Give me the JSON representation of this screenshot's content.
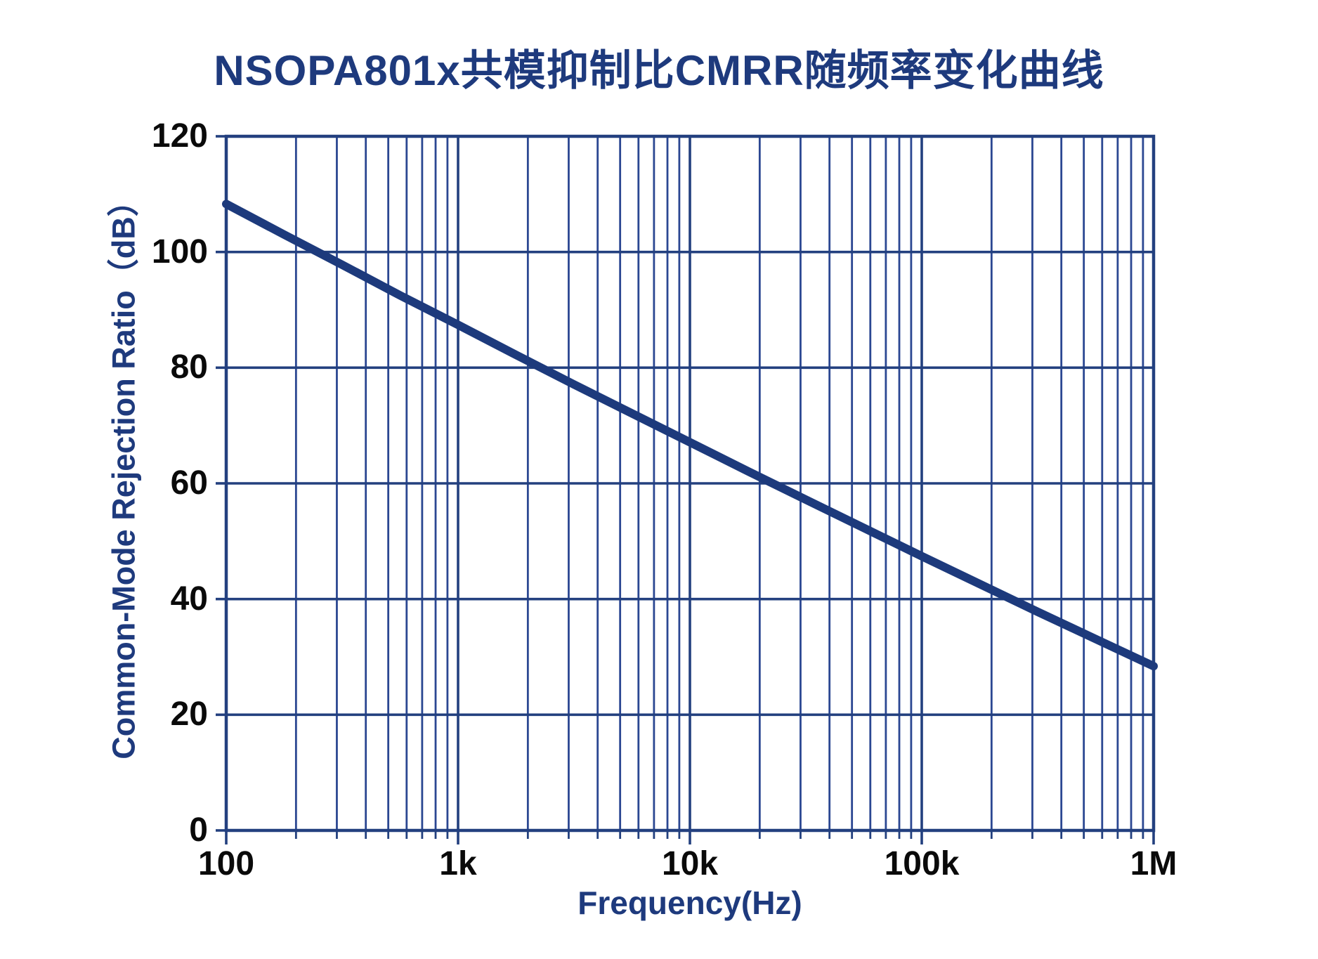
{
  "colors": {
    "curve": "#1d3a7c",
    "grid_minor": "#2b4792",
    "grid_major": "#23407f",
    "frame": "#23407f",
    "title_text": "#1e3a7d",
    "axis_title_text": "#1e3a7d",
    "tick_label_text": "#0a0a0a",
    "background": "#ffffff"
  },
  "chart_data": {
    "type": "line",
    "title": "NSOPA801x共模抑制比CMRR随频率变化曲线",
    "xlabel": "Frequency(Hz)",
    "ylabel": "Common-Mode Rejection Ratio（dB）",
    "xscale": "log",
    "xlim": [
      100,
      1000000
    ],
    "ylim": [
      0,
      120
    ],
    "grid": "full-frame, log minor verticals (2-9 per decade), horizontal majors every 20 dB",
    "legend": false,
    "xticks": [
      {
        "value": 100,
        "label": "100"
      },
      {
        "value": 1000,
        "label": "1k"
      },
      {
        "value": 10000,
        "label": "10k"
      },
      {
        "value": 100000,
        "label": "100k"
      },
      {
        "value": 1000000,
        "label": "1M"
      }
    ],
    "yticks": [
      {
        "value": 0,
        "label": "0"
      },
      {
        "value": 20,
        "label": "20"
      },
      {
        "value": 40,
        "label": "40"
      },
      {
        "value": 60,
        "label": "60"
      },
      {
        "value": 80,
        "label": "80"
      },
      {
        "value": 100,
        "label": "100"
      },
      {
        "value": 120,
        "label": "120"
      }
    ],
    "series": [
      {
        "name": "CMRR",
        "color": "#1d3a7c",
        "points": [
          [
            100,
            108.3
          ],
          [
            178,
            103.0
          ],
          [
            316,
            97.8
          ],
          [
            562,
            92.5
          ],
          [
            1000,
            87.4
          ],
          [
            1780,
            82.2
          ],
          [
            3160,
            77.1
          ],
          [
            5620,
            72.1
          ],
          [
            10000,
            67.1
          ],
          [
            17800,
            62.1
          ],
          [
            31600,
            57.2
          ],
          [
            56200,
            52.3
          ],
          [
            100000,
            47.4
          ],
          [
            178000,
            42.6
          ],
          [
            316000,
            37.8
          ],
          [
            562000,
            33.1
          ],
          [
            1000000,
            28.4
          ]
        ]
      }
    ]
  }
}
